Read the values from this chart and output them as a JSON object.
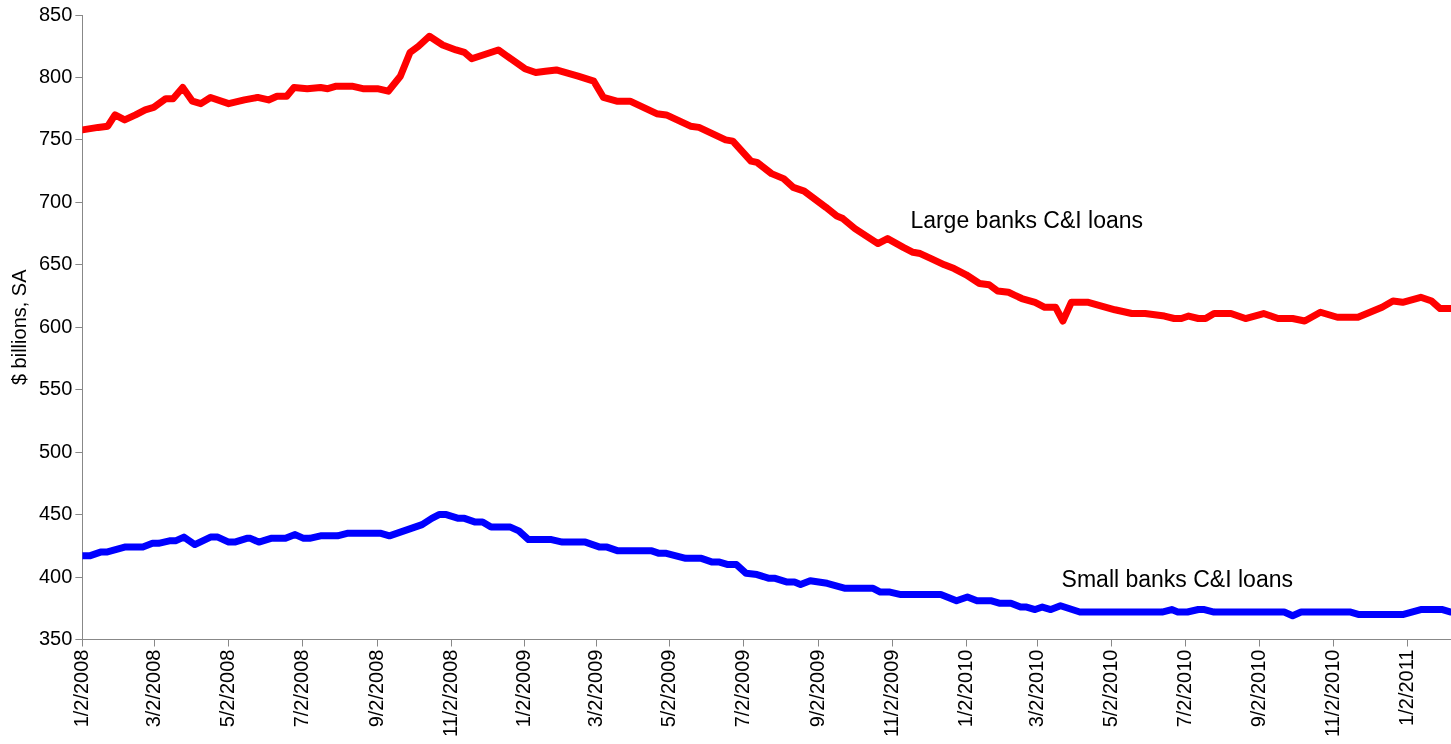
{
  "chart_data": {
    "type": "line",
    "ylabel": "$ billions, SA",
    "legend": false,
    "grid": false,
    "marker": "none",
    "line_style": "solid",
    "xlim": [
      "2008-01-02",
      "2011-02-07"
    ],
    "xticks": [
      {
        "value": "2008-01-02",
        "label": "1/2/2008"
      },
      {
        "value": "2008-03-02",
        "label": "3/2/2008"
      },
      {
        "value": "2008-05-02",
        "label": "5/2/2008"
      },
      {
        "value": "2008-07-02",
        "label": "7/2/2008"
      },
      {
        "value": "2008-09-02",
        "label": "9/2/2008"
      },
      {
        "value": "2008-11-02",
        "label": "11/2/2008"
      },
      {
        "value": "2009-01-02",
        "label": "1/2/2009"
      },
      {
        "value": "2009-03-02",
        "label": "3/2/2009"
      },
      {
        "value": "2009-05-02",
        "label": "5/2/2009"
      },
      {
        "value": "2009-07-02",
        "label": "7/2/2009"
      },
      {
        "value": "2009-09-02",
        "label": "9/2/2009"
      },
      {
        "value": "2009-11-02",
        "label": "11/2/2009"
      },
      {
        "value": "2010-01-02",
        "label": "1/2/2010"
      },
      {
        "value": "2010-03-02",
        "label": "3/2/2010"
      },
      {
        "value": "2010-05-02",
        "label": "5/2/2010"
      },
      {
        "value": "2010-07-02",
        "label": "7/2/2010"
      },
      {
        "value": "2010-09-02",
        "label": "9/2/2010"
      },
      {
        "value": "2010-11-02",
        "label": "11/2/2010"
      },
      {
        "value": "2011-01-02",
        "label": "1/2/2011"
      }
    ],
    "ylim": [
      350,
      850
    ],
    "yticks": [
      350,
      400,
      450,
      500,
      550,
      600,
      650,
      700,
      750,
      800,
      850
    ],
    "series": [
      {
        "name": "Large banks C&I loans",
        "color": "#ff0000",
        "x": [
          "2008-01-02",
          "2008-01-15",
          "2008-01-23",
          "2008-01-29",
          "2008-02-06",
          "2008-02-15",
          "2008-02-23",
          "2008-03-01",
          "2008-03-11",
          "2008-03-17",
          "2008-03-25",
          "2008-04-02",
          "2008-04-09",
          "2008-04-17",
          "2008-05-02",
          "2008-05-15",
          "2008-05-26",
          "2008-06-04",
          "2008-06-11",
          "2008-06-19",
          "2008-06-25",
          "2008-07-06",
          "2008-07-17",
          "2008-07-23",
          "2008-07-30",
          "2008-08-12",
          "2008-08-21",
          "2008-09-02",
          "2008-09-11",
          "2008-09-21",
          "2008-09-29",
          "2008-10-06",
          "2008-10-15",
          "2008-10-26",
          "2008-11-06",
          "2008-11-13",
          "2008-11-19",
          "2008-12-11",
          "2009-01-02",
          "2009-01-11",
          "2009-01-19",
          "2009-01-28",
          "2009-02-15",
          "2009-02-28",
          "2009-03-08",
          "2009-03-19",
          "2009-03-30",
          "2009-04-21",
          "2009-04-29",
          "2009-05-19",
          "2009-05-26",
          "2009-06-17",
          "2009-06-23",
          "2009-07-08",
          "2009-07-13",
          "2009-07-25",
          "2009-08-04",
          "2009-08-12",
          "2009-08-21",
          "2009-09-08",
          "2009-09-17",
          "2009-09-22",
          "2009-10-02",
          "2009-10-21",
          "2009-10-29",
          "2009-11-11",
          "2009-11-19",
          "2009-11-25",
          "2009-12-04",
          "2009-12-15",
          "2009-12-23",
          "2010-01-02",
          "2010-01-13",
          "2010-01-21",
          "2010-01-28",
          "2010-02-06",
          "2010-02-17",
          "2010-02-28",
          "2010-03-08",
          "2010-03-17",
          "2010-03-23",
          "2010-03-30",
          "2010-04-13",
          "2010-05-05",
          "2010-05-19",
          "2010-05-30",
          "2010-06-15",
          "2010-06-23",
          "2010-06-29",
          "2010-07-05",
          "2010-07-13",
          "2010-07-19",
          "2010-07-26",
          "2010-08-09",
          "2010-08-21",
          "2010-09-05",
          "2010-09-17",
          "2010-09-29",
          "2010-10-09",
          "2010-10-22",
          "2010-11-05",
          "2010-11-22",
          "2010-12-12",
          "2010-12-21",
          "2010-12-29",
          "2011-01-13",
          "2011-01-22",
          "2011-01-29",
          "2011-02-07"
        ],
        "values": [
          758,
          760,
          761,
          770,
          766,
          770,
          774,
          776,
          783,
          783,
          792,
          781,
          779,
          784,
          779,
          782,
          784,
          782,
          785,
          785,
          792,
          791,
          792,
          791,
          793,
          793,
          791,
          791,
          789,
          801,
          820,
          825,
          833,
          826,
          822,
          820,
          815,
          822,
          807,
          804,
          805,
          806,
          801,
          797,
          784,
          781,
          781,
          771,
          770,
          761,
          760,
          750,
          749,
          733,
          732,
          723,
          719,
          712,
          709,
          696,
          689,
          687,
          679,
          667,
          671,
          664,
          660,
          659,
          655,
          650,
          647,
          642,
          635,
          634,
          629,
          628,
          623,
          620,
          616,
          616,
          605,
          620,
          620,
          614,
          611,
          611,
          609,
          607,
          607,
          609,
          607,
          607,
          611,
          611,
          607,
          611,
          607,
          607,
          605,
          612,
          608,
          608,
          616,
          621,
          620,
          624,
          621,
          615,
          615
        ]
      },
      {
        "name": "Small banks C&I loans",
        "color": "#0000ff",
        "x": [
          "2008-01-02",
          "2008-01-08",
          "2008-01-17",
          "2008-01-22",
          "2008-02-06",
          "2008-02-21",
          "2008-02-29",
          "2008-03-05",
          "2008-03-14",
          "2008-03-19",
          "2008-03-26",
          "2008-04-04",
          "2008-04-17",
          "2008-04-23",
          "2008-05-02",
          "2008-05-07",
          "2008-05-17",
          "2008-05-20",
          "2008-05-27",
          "2008-06-06",
          "2008-06-18",
          "2008-06-26",
          "2008-07-03",
          "2008-07-08",
          "2008-07-17",
          "2008-07-31",
          "2008-08-08",
          "2008-09-05",
          "2008-09-12",
          "2008-10-09",
          "2008-10-17",
          "2008-10-23",
          "2008-10-29",
          "2008-11-08",
          "2008-11-13",
          "2008-11-22",
          "2008-11-28",
          "2008-12-05",
          "2008-12-21",
          "2008-12-28",
          "2009-01-05",
          "2009-01-24",
          "2009-02-02",
          "2009-02-21",
          "2009-03-05",
          "2009-03-11",
          "2009-03-20",
          "2009-04-17",
          "2009-04-23",
          "2009-04-29",
          "2009-05-15",
          "2009-05-28",
          "2009-06-06",
          "2009-06-12",
          "2009-06-19",
          "2009-06-26",
          "2009-07-04",
          "2009-07-13",
          "2009-07-23",
          "2009-07-28",
          "2009-08-07",
          "2009-08-13",
          "2009-08-18",
          "2009-08-26",
          "2009-09-09",
          "2009-09-24",
          "2009-10-17",
          "2009-10-23",
          "2009-10-31",
          "2009-11-09",
          "2009-12-12",
          "2009-12-25",
          "2010-01-03",
          "2010-01-11",
          "2010-01-23",
          "2010-01-30",
          "2010-02-08",
          "2010-02-16",
          "2010-02-21",
          "2010-02-28",
          "2010-03-06",
          "2010-03-13",
          "2010-03-21",
          "2010-04-06",
          "2010-06-13",
          "2010-06-21",
          "2010-06-26",
          "2010-07-04",
          "2010-07-13",
          "2010-07-18",
          "2010-07-26",
          "2010-09-22",
          "2010-09-29",
          "2010-10-06",
          "2010-11-16",
          "2010-11-23",
          "2010-12-29",
          "2011-01-13",
          "2011-01-31",
          "2011-02-07"
        ],
        "values": [
          417,
          417,
          420,
          420,
          424,
          424,
          427,
          427,
          429,
          429,
          432,
          426,
          432,
          432,
          428,
          428,
          431,
          431,
          428,
          431,
          431,
          434,
          431,
          431,
          433,
          433,
          435,
          435,
          433,
          442,
          447,
          450,
          450,
          447,
          447,
          444,
          444,
          440,
          440,
          437,
          430,
          430,
          428,
          428,
          424,
          424,
          421,
          421,
          419,
          419,
          415,
          415,
          412,
          412,
          410,
          410,
          403,
          402,
          399,
          399,
          396,
          396,
          394,
          397,
          395,
          391,
          391,
          388,
          388,
          386,
          386,
          381,
          384,
          381,
          381,
          379,
          379,
          376,
          376,
          374,
          376,
          374,
          377,
          372,
          372,
          374,
          372,
          372,
          374,
          374,
          372,
          372,
          369,
          372,
          372,
          370,
          370,
          374,
          374,
          372
        ]
      }
    ]
  }
}
